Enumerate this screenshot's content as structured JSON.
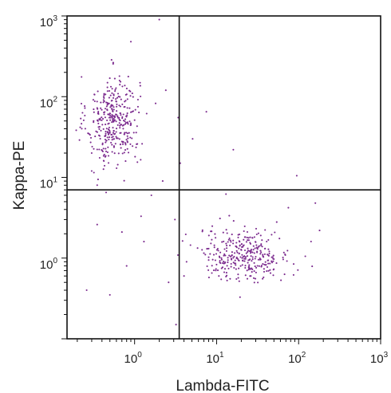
{
  "chart_data": {
    "type": "scatter",
    "title": "",
    "xlabel": "Lambda-FITC",
    "ylabel": "Kappa-PE",
    "xscale": "log",
    "yscale": "log",
    "xlim": [
      0.15,
      1000
    ],
    "ylim": [
      0.1,
      1000
    ],
    "grid": false,
    "point_color": "#7b2a8e",
    "axis_color": "#111111",
    "x_ticks": [
      {
        "base": "10",
        "exp": "0",
        "value": 1
      },
      {
        "base": "10",
        "exp": "1",
        "value": 10
      },
      {
        "base": "10",
        "exp": "2",
        "value": 100
      },
      {
        "base": "10",
        "exp": "3",
        "value": 1000
      }
    ],
    "y_ticks": [
      {
        "base": "10",
        "exp": "0",
        "value": 1
      },
      {
        "base": "10",
        "exp": "1",
        "value": 10
      },
      {
        "base": "10",
        "exp": "2",
        "value": 100
      },
      {
        "base": "10",
        "exp": "3",
        "value": 1000
      }
    ],
    "gates": {
      "x": 3.5,
      "y": 7.0
    },
    "populations": [
      {
        "center": [
          0.55,
          50
        ],
        "spread": [
          0.16,
          0.28
        ],
        "count": 360
      },
      {
        "center": [
          22,
          1.1
        ],
        "spread": [
          0.28,
          0.16
        ],
        "count": 330
      }
    ],
    "sparse_points": [
      [
        2.0,
        900
      ],
      [
        0.9,
        480
      ],
      [
        7.5,
        65
      ],
      [
        2.4,
        120
      ],
      [
        1.1,
        75
      ],
      [
        0.3,
        12
      ],
      [
        3.1,
        3.0
      ],
      [
        3.2,
        0.15
      ],
      [
        0.5,
        0.35
      ],
      [
        0.35,
        2.6
      ],
      [
        0.8,
        0.8
      ],
      [
        1.2,
        3.3
      ],
      [
        1.6,
        6.0
      ],
      [
        2.2,
        9.0
      ],
      [
        3.4,
        55
      ],
      [
        3.6,
        15
      ],
      [
        16,
        22
      ],
      [
        5.1,
        30
      ],
      [
        95,
        10.5
      ],
      [
        160,
        4.8
      ],
      [
        180,
        2.2
      ],
      [
        75,
        4.2
      ],
      [
        13,
        6.2
      ],
      [
        4.0,
        0.6
      ],
      [
        4.3,
        0.9
      ],
      [
        0.35,
        8.0
      ],
      [
        0.45,
        6.5
      ],
      [
        0.7,
        2.1
      ],
      [
        1.3,
        1.6
      ],
      [
        2.6,
        0.5
      ],
      [
        0.26,
        0.4
      ],
      [
        0.3,
        20
      ]
    ]
  }
}
